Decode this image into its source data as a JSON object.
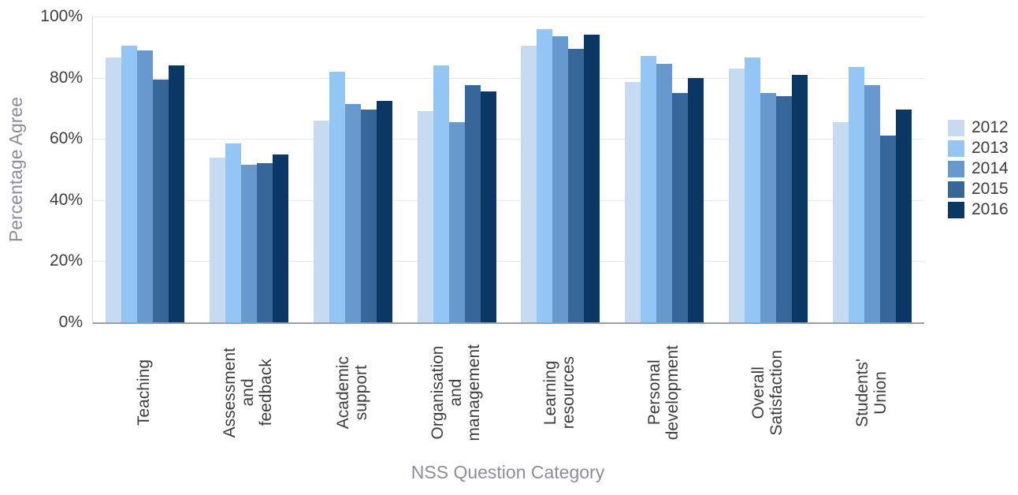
{
  "chart_data": {
    "type": "bar",
    "title": "",
    "xlabel": "NSS Question Category",
    "ylabel": "Percentage Agree",
    "ylim": [
      0,
      100
    ],
    "y_tick_step": 20,
    "y_tick_labels": [
      "0%",
      "20%",
      "40%",
      "60%",
      "80%",
      "100%"
    ],
    "grid": true,
    "legend_position": "right",
    "categories": [
      "Teaching",
      "Assessment and feedback",
      "Academic support",
      "Organisation and management",
      "Learning resources",
      "Personal development",
      "Overall Satisfaction",
      "Students' Union"
    ],
    "category_display": [
      "Teaching",
      "Assessment\nand\nfeedback",
      "Academic\nsupport",
      "Organisation\nand\nmanagement",
      "Learning\nresources",
      "Personal\ndevelopment",
      "Overall\nSatisfaction",
      "Students'\nUnion"
    ],
    "series": [
      {
        "name": "2012",
        "color": "#c6daf2",
        "values": [
          86.5,
          54.0,
          66.0,
          69.0,
          90.5,
          78.5,
          83.0,
          65.5
        ]
      },
      {
        "name": "2013",
        "color": "#94c6f5",
        "values": [
          90.5,
          58.5,
          82.0,
          84.0,
          96.0,
          87.0,
          86.5,
          83.5
        ]
      },
      {
        "name": "2014",
        "color": "#6899ce",
        "values": [
          89.0,
          51.5,
          71.5,
          65.5,
          93.5,
          84.5,
          75.0,
          77.5
        ]
      },
      {
        "name": "2015",
        "color": "#37679a",
        "values": [
          79.5,
          52.0,
          69.5,
          77.5,
          89.5,
          75.0,
          74.0,
          61.0
        ]
      },
      {
        "name": "2016",
        "color": "#0a3763",
        "values": [
          84.0,
          55.0,
          72.5,
          75.5,
          94.0,
          80.0,
          81.0,
          69.5
        ]
      }
    ]
  }
}
